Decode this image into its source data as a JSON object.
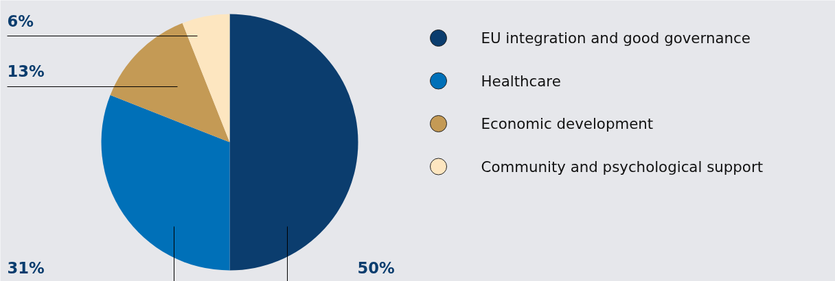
{
  "chart_data": {
    "type": "pie",
    "categories": [
      "EU integration and good governance",
      "Healthcare",
      "Economic development",
      "Community and psychological support"
    ],
    "values": [
      50,
      31,
      13,
      6
    ],
    "colors": [
      "#0b3d6e",
      "#0070b8",
      "#c49a55",
      "#fde6c0"
    ],
    "value_labels": [
      "50%",
      "31%",
      "13%",
      "6%"
    ],
    "legend": "right"
  }
}
